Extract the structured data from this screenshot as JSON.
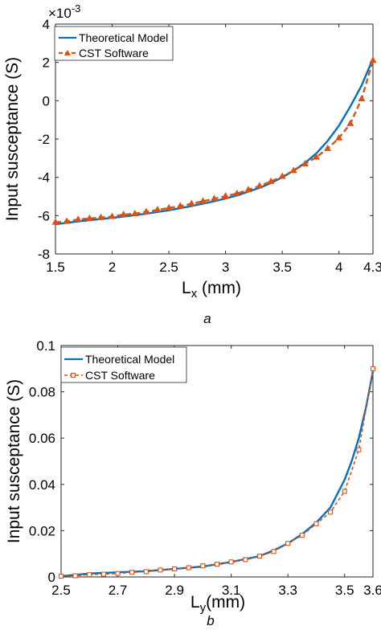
{
  "chart_data": [
    {
      "type": "line",
      "caption": "a",
      "xlabel": "L",
      "xlabel_sub": "x",
      "xlabel_unit": " (mm)",
      "ylabel": "Input susceptance (S)",
      "exponent_base": "×10",
      "exponent_power": "-3",
      "xlim": [
        1.5,
        4.3
      ],
      "ylim": [
        -8,
        4
      ],
      "xticks": [
        1.5,
        2,
        2.5,
        3,
        3.5,
        4,
        4.3
      ],
      "xtick_labels": [
        "1.5",
        "2",
        "2.5",
        "3",
        "3.5",
        "4",
        "4.3"
      ],
      "yticks": [
        -8,
        -6,
        -4,
        -2,
        0,
        2,
        4
      ],
      "ytick_labels": [
        "-8",
        "-6",
        "-4",
        "-2",
        "0",
        "2",
        "4"
      ],
      "grid": false,
      "legend_position": "top-left",
      "series": [
        {
          "name": "Theoretical Model",
          "style": "solid",
          "color": "#0072bd",
          "x": [
            1.5,
            1.7,
            1.9,
            2.1,
            2.3,
            2.5,
            2.7,
            2.9,
            3.0,
            3.1,
            3.2,
            3.3,
            3.4,
            3.5,
            3.6,
            3.7,
            3.8,
            3.9,
            4.0,
            4.1,
            4.2,
            4.3
          ],
          "y": [
            -6.45,
            -6.3,
            -6.18,
            -6.05,
            -5.9,
            -5.72,
            -5.5,
            -5.25,
            -5.1,
            -4.95,
            -4.75,
            -4.55,
            -4.3,
            -4.0,
            -3.65,
            -3.25,
            -2.75,
            -2.1,
            -1.3,
            -0.3,
            0.8,
            2.2
          ]
        },
        {
          "name": "CST Software",
          "style": "dashed",
          "marker": "triangle",
          "color": "#d95319",
          "x": [
            1.5,
            1.6,
            1.7,
            1.8,
            1.9,
            2.0,
            2.1,
            2.2,
            2.3,
            2.4,
            2.5,
            2.6,
            2.7,
            2.8,
            2.9,
            3.0,
            3.1,
            3.2,
            3.3,
            3.4,
            3.5,
            3.6,
            3.7,
            3.8,
            3.9,
            4.0,
            4.1,
            4.2,
            4.3
          ],
          "y": [
            -6.35,
            -6.3,
            -6.2,
            -6.15,
            -6.1,
            -6.05,
            -5.95,
            -5.9,
            -5.8,
            -5.7,
            -5.6,
            -5.5,
            -5.38,
            -5.25,
            -5.12,
            -4.98,
            -4.85,
            -4.65,
            -4.45,
            -4.22,
            -3.95,
            -3.65,
            -3.3,
            -2.95,
            -2.5,
            -1.95,
            -1.2,
            0.1,
            2.1
          ]
        }
      ]
    },
    {
      "type": "line",
      "caption": "b",
      "xlabel": "L",
      "xlabel_sub": "y",
      "xlabel_unit": "(mm)",
      "ylabel": "Input susceptance (S)",
      "xlim": [
        2.5,
        3.6
      ],
      "ylim": [
        0,
        0.1
      ],
      "xticks": [
        2.5,
        2.7,
        2.9,
        3.1,
        3.3,
        3.5,
        3.6
      ],
      "xtick_labels": [
        "2.5",
        "2.7",
        "2.9",
        "3.1",
        "3.3",
        "3.5",
        "3.6"
      ],
      "yticks": [
        0,
        0.02,
        0.04,
        0.06,
        0.08,
        0.1
      ],
      "ytick_labels": [
        "0",
        "0.02",
        "0.04",
        "0.06",
        "0.08",
        "0.1"
      ],
      "grid": false,
      "legend_position": "top-left",
      "series": [
        {
          "name": "Theoretical Model",
          "style": "solid",
          "color": "#0072bd",
          "x": [
            2.5,
            2.6,
            2.7,
            2.8,
            2.9,
            3.0,
            3.05,
            3.1,
            3.15,
            3.2,
            3.25,
            3.3,
            3.35,
            3.4,
            3.45,
            3.5,
            3.525,
            3.55,
            3.575,
            3.6
          ],
          "y": [
            0.0003,
            0.0015,
            0.002,
            0.0025,
            0.0035,
            0.0045,
            0.0055,
            0.0065,
            0.0077,
            0.009,
            0.0115,
            0.0145,
            0.0185,
            0.0235,
            0.03,
            0.042,
            0.05,
            0.06,
            0.073,
            0.089
          ]
        },
        {
          "name": "CST Software",
          "style": "dashed",
          "marker": "square",
          "color": "#d95319",
          "x": [
            2.5,
            2.55,
            2.6,
            2.65,
            2.7,
            2.75,
            2.8,
            2.85,
            2.9,
            2.95,
            3.0,
            3.05,
            3.1,
            3.15,
            3.2,
            3.25,
            3.3,
            3.35,
            3.4,
            3.45,
            3.5,
            3.55,
            3.6
          ],
          "y": [
            0.0003,
            0.0005,
            0.001,
            0.0012,
            0.0015,
            0.002,
            0.0023,
            0.003,
            0.0035,
            0.004,
            0.0048,
            0.0055,
            0.0065,
            0.0075,
            0.009,
            0.011,
            0.0145,
            0.018,
            0.023,
            0.028,
            0.037,
            0.055,
            0.09
          ]
        }
      ]
    }
  ]
}
